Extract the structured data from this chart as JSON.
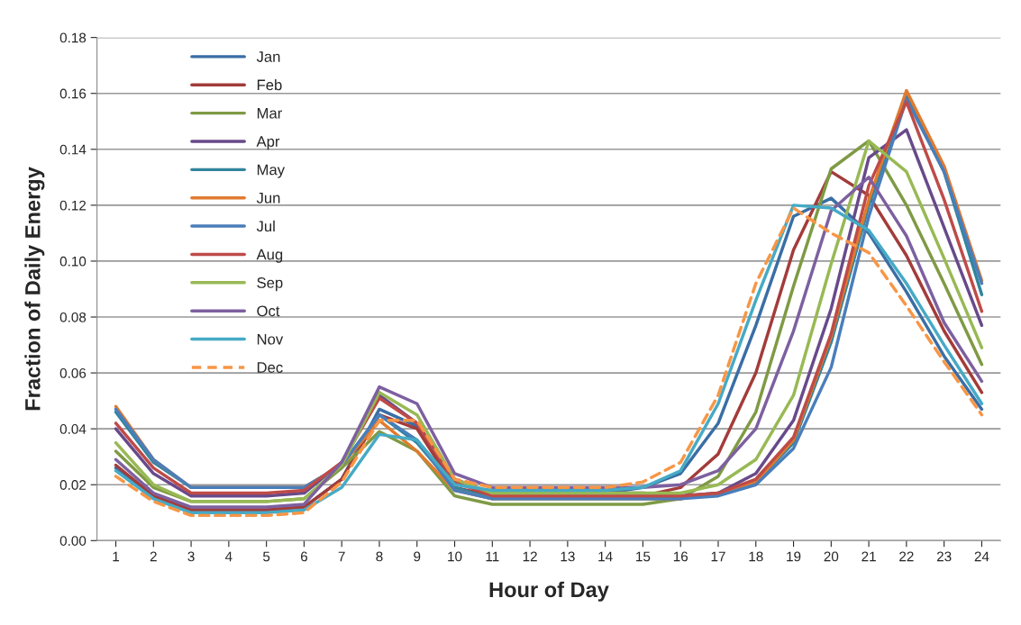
{
  "chart_data": {
    "type": "line",
    "xlabel": "Hour of Day",
    "ylabel": "Fraction of Daily Energy",
    "categories": [
      "1",
      "2",
      "3",
      "4",
      "5",
      "6",
      "7",
      "8",
      "9",
      "10",
      "11",
      "12",
      "13",
      "14",
      "15",
      "16",
      "17",
      "18",
      "19",
      "20",
      "21",
      "22",
      "23",
      "24"
    ],
    "ylim": [
      0,
      0.18
    ],
    "yticks": [
      {
        "value": 0,
        "label": "0.00"
      },
      {
        "value": 0.02,
        "label": "0.02"
      },
      {
        "value": 0.04,
        "label": "0.04"
      },
      {
        "value": 0.06,
        "label": "0.06"
      },
      {
        "value": 0.08,
        "label": "0.08"
      },
      {
        "value": 0.1,
        "label": "0.10"
      },
      {
        "value": 0.12,
        "label": "0.12"
      },
      {
        "value": 0.14,
        "label": "0.14"
      },
      {
        "value": 0.16,
        "label": "0.16"
      },
      {
        "value": 0.18,
        "label": "0.18"
      }
    ],
    "grid": "y",
    "legend": "top left",
    "marker": "none",
    "series": [
      {
        "name": "Jan",
        "color": "#3a6ea5",
        "values": [
          0.026,
          0.016,
          0.011,
          0.011,
          0.011,
          0.012,
          0.022,
          0.047,
          0.041,
          0.021,
          0.017,
          0.017,
          0.017,
          0.017,
          0.019,
          0.024,
          0.042,
          0.077,
          0.116,
          0.1225,
          0.11,
          0.089,
          0.066,
          0.047
        ]
      },
      {
        "name": "Feb",
        "color": "#a33c3a",
        "values": [
          0.027,
          0.016,
          0.011,
          0.011,
          0.011,
          0.012,
          0.022,
          0.045,
          0.04,
          0.019,
          0.016,
          0.016,
          0.016,
          0.016,
          0.016,
          0.019,
          0.031,
          0.06,
          0.104,
          0.132,
          0.1235,
          0.102,
          0.075,
          0.053
        ]
      },
      {
        "name": "Mar",
        "color": "#7f9a44",
        "values": [
          0.032,
          0.019,
          0.014,
          0.014,
          0.014,
          0.015,
          0.026,
          0.039,
          0.032,
          0.016,
          0.013,
          0.013,
          0.013,
          0.013,
          0.013,
          0.015,
          0.023,
          0.046,
          0.091,
          0.133,
          0.143,
          0.12,
          0.092,
          0.063
        ]
      },
      {
        "name": "Apr",
        "color": "#684a8a",
        "values": [
          0.04,
          0.024,
          0.016,
          0.016,
          0.016,
          0.017,
          0.028,
          0.052,
          0.042,
          0.022,
          0.017,
          0.017,
          0.017,
          0.017,
          0.017,
          0.016,
          0.017,
          0.024,
          0.043,
          0.083,
          0.137,
          0.147,
          0.112,
          0.077
        ]
      },
      {
        "name": "May",
        "color": "#31859c",
        "values": [
          0.046,
          0.028,
          0.019,
          0.019,
          0.019,
          0.019,
          0.027,
          0.045,
          0.035,
          0.019,
          0.015,
          0.015,
          0.015,
          0.015,
          0.015,
          0.015,
          0.017,
          0.021,
          0.035,
          0.071,
          0.12,
          0.159,
          0.132,
          0.088
        ]
      },
      {
        "name": "Jun",
        "color": "#e07b2f",
        "values": [
          0.048,
          0.029,
          0.019,
          0.019,
          0.019,
          0.019,
          0.027,
          0.043,
          0.032,
          0.018,
          0.015,
          0.015,
          0.015,
          0.015,
          0.015,
          0.015,
          0.017,
          0.021,
          0.036,
          0.073,
          0.122,
          0.161,
          0.134,
          0.093
        ]
      },
      {
        "name": "Jul",
        "color": "#4a7ebb",
        "values": [
          0.047,
          0.029,
          0.019,
          0.019,
          0.019,
          0.019,
          0.027,
          0.045,
          0.036,
          0.018,
          0.015,
          0.015,
          0.015,
          0.015,
          0.015,
          0.015,
          0.016,
          0.02,
          0.033,
          0.062,
          0.116,
          0.158,
          0.132,
          0.092
        ]
      },
      {
        "name": "Aug",
        "color": "#be4b48",
        "values": [
          0.042,
          0.026,
          0.017,
          0.017,
          0.017,
          0.018,
          0.028,
          0.051,
          0.042,
          0.021,
          0.016,
          0.016,
          0.016,
          0.016,
          0.016,
          0.016,
          0.017,
          0.022,
          0.037,
          0.074,
          0.127,
          0.157,
          0.122,
          0.082
        ]
      },
      {
        "name": "Sep",
        "color": "#98b954",
        "values": [
          0.035,
          0.02,
          0.014,
          0.014,
          0.014,
          0.015,
          0.027,
          0.053,
          0.045,
          0.022,
          0.017,
          0.017,
          0.017,
          0.017,
          0.017,
          0.017,
          0.02,
          0.029,
          0.052,
          0.099,
          0.143,
          0.132,
          0.101,
          0.069
        ]
      },
      {
        "name": "Oct",
        "color": "#7d60a0",
        "values": [
          0.029,
          0.017,
          0.012,
          0.012,
          0.012,
          0.013,
          0.028,
          0.055,
          0.049,
          0.024,
          0.019,
          0.019,
          0.019,
          0.019,
          0.019,
          0.02,
          0.025,
          0.04,
          0.075,
          0.118,
          0.13,
          0.109,
          0.078,
          0.057
        ]
      },
      {
        "name": "Nov",
        "color": "#46aac5",
        "values": [
          0.025,
          0.015,
          0.01,
          0.01,
          0.01,
          0.011,
          0.019,
          0.038,
          0.036,
          0.02,
          0.018,
          0.018,
          0.018,
          0.018,
          0.019,
          0.025,
          0.049,
          0.086,
          0.12,
          0.119,
          0.111,
          0.092,
          0.07,
          0.049
        ]
      },
      {
        "name": "Dec",
        "color": "#f79646",
        "line_style": "dashed",
        "values": [
          0.023,
          0.014,
          0.009,
          0.009,
          0.009,
          0.01,
          0.021,
          0.043,
          0.043,
          0.022,
          0.019,
          0.019,
          0.019,
          0.019,
          0.021,
          0.028,
          0.052,
          0.092,
          0.119,
          0.11,
          0.103,
          0.084,
          0.064,
          0.045
        ]
      }
    ]
  }
}
